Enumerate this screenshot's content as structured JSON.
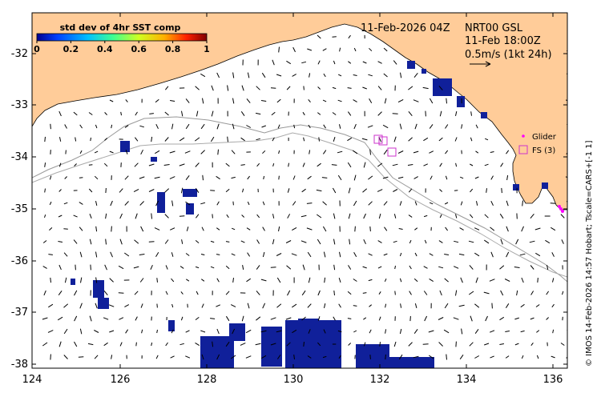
{
  "map": {
    "date_label": "11-Feb-2026 04Z",
    "product_label": "NRT00 GSL",
    "time_label": "11-Feb 18:00Z",
    "scale_label": "0.5m/s (1kt 24h)",
    "credit": "© IMOS 14-Feb-2026 14:57 Hobart; Tscale=CARS+[-1 1]",
    "legend": {
      "glider": "Glider",
      "fs": "FS (3)"
    },
    "colorbar": {
      "title": "std dev of 4hr SST comp",
      "ticks": [
        "0",
        "0.2",
        "0.4",
        "0.6",
        "0.8",
        "1"
      ],
      "colors": [
        "#00008f",
        "#0050ff",
        "#00d0ff",
        "#50ff80",
        "#e0ff00",
        "#ffb000",
        "#ff3000",
        "#800000"
      ]
    },
    "land_color": "#ffcc99",
    "sst_color": "#10209a",
    "fs_color": "#cc33cc",
    "glider_color": "#ff00ff"
  },
  "chart_data": {
    "type": "map",
    "x_ticks": [
      "124",
      "126",
      "128",
      "130",
      "132",
      "134",
      "136"
    ],
    "y_ticks": [
      "-32",
      "-33",
      "-34",
      "-35",
      "-36",
      "-37",
      "-38"
    ],
    "xlim": [
      124,
      136.5
    ],
    "ylim": [
      -38.1,
      -31.3
    ],
    "fs_stations": [
      {
        "lon": 132.1,
        "lat": -33.68
      },
      {
        "lon": 132.2,
        "lat": -33.7
      },
      {
        "lon": 132.4,
        "lat": -33.9
      }
    ],
    "glider": {
      "lon": 136.4,
      "lat": -35.0
    }
  }
}
